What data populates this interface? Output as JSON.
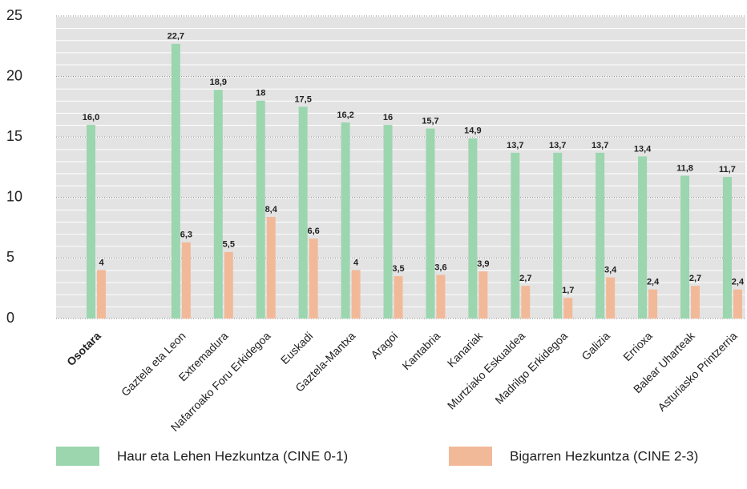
{
  "chart_data": {
    "type": "bar",
    "categories": [
      "Osotara",
      null,
      "Gaztela eta Leon",
      "Extremadura",
      "Nafarroako Foru Erkidegoa",
      "Euskadi",
      "Gaztela-Mantxa",
      "Aragoi",
      "Kantabria",
      "Kanariak",
      "Murtziako Eskualdea",
      "Madrilgo Erkidegoa",
      "Galizia",
      "Errioxa",
      "Balear Uharteak",
      "Asturiasko Printzerria"
    ],
    "series": [
      {
        "name": "Haur eta Lehen Hezkuntza (CINE 0-1)",
        "color": "#9bd6af",
        "values": [
          16.0,
          null,
          22.7,
          18.9,
          18,
          17.5,
          16.2,
          16,
          15.7,
          14.9,
          13.7,
          13.7,
          13.7,
          13.4,
          11.8,
          11.7
        ],
        "value_labels": [
          "16,0",
          null,
          "22,7",
          "18,9",
          "18",
          "17,5",
          "16,2",
          "16",
          "15,7",
          "14,9",
          "13,7",
          "13,7",
          "13,7",
          "13,4",
          "11,8",
          "11,7"
        ]
      },
      {
        "name": "Bigarren Hezkuntza (CINE 2-3)",
        "color": "#f2b999",
        "values": [
          4,
          null,
          6.3,
          5.5,
          8.4,
          6.6,
          4,
          3.5,
          3.6,
          3.9,
          2.7,
          1.7,
          3.4,
          2.4,
          2.7,
          2.4
        ],
        "value_labels": [
          "4",
          null,
          "6,3",
          "5,5",
          "8,4",
          "6,6",
          "4",
          "3,5",
          "3,6",
          "3,9",
          "2,7",
          "1,7",
          "3,4",
          "2,4",
          "2,7",
          "2,4"
        ]
      }
    ],
    "ylim": [
      0,
      25
    ],
    "yticks": [
      0,
      5,
      10,
      15,
      20,
      25
    ],
    "grid": true
  }
}
